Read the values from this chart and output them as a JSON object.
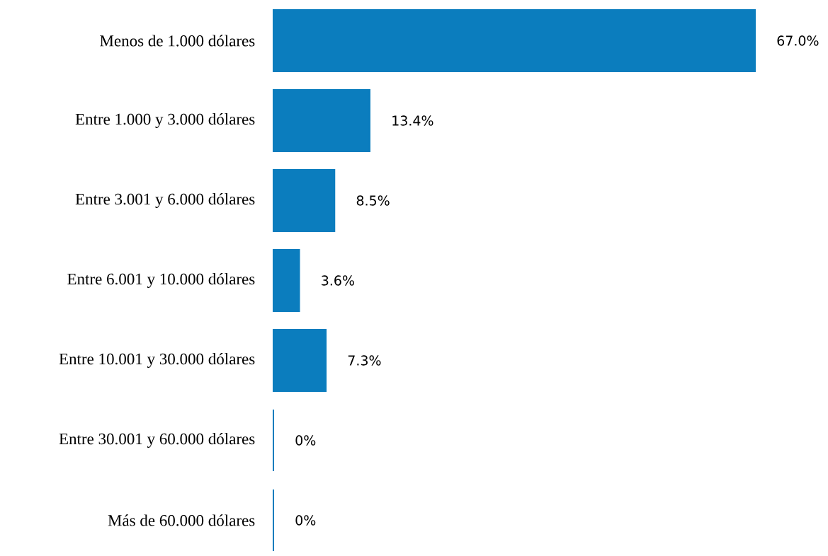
{
  "chart_data": {
    "type": "bar",
    "orientation": "horizontal",
    "categories": [
      "Menos de 1.000 dólares",
      "Entre 1.000 y 3.000 dólares",
      "Entre 3.001 y 6.000 dólares",
      "Entre 6.001 y 10.000 dólares",
      "Entre 10.001 y 30.000 dólares",
      "Entre 30.001 y 60.000 dólares",
      "Más de 60.000 dólares"
    ],
    "values": [
      67.0,
      13.4,
      8.5,
      3.6,
      7.3,
      0,
      0
    ],
    "value_labels": [
      "67.0%",
      "13.4%",
      "8.5%",
      "3.6%",
      "7.3%",
      "0%",
      "0%"
    ],
    "color": "#0b7dbe"
  }
}
